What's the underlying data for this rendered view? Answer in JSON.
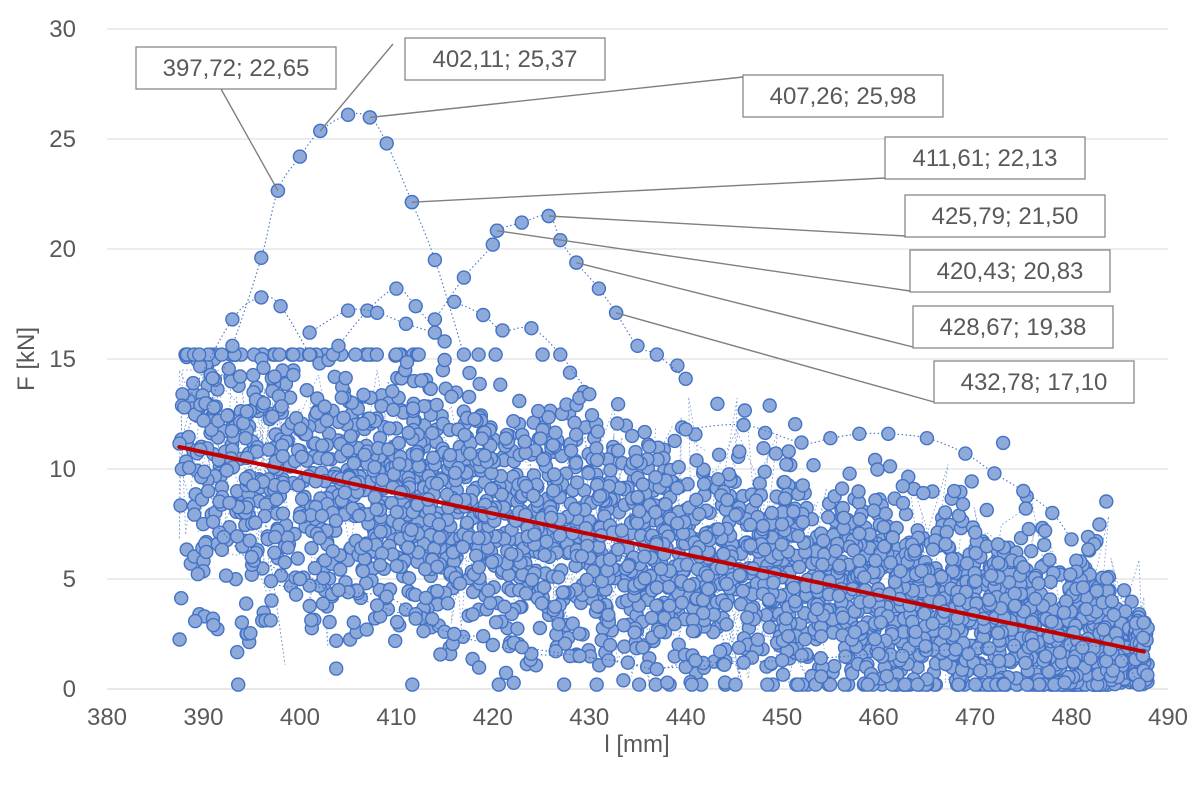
{
  "chart_data": {
    "type": "scatter",
    "xlabel": "l [mm]",
    "ylabel": "F [kN]",
    "xlim": [
      380,
      490
    ],
    "ylim": [
      0,
      30
    ],
    "xticks": [
      "380",
      "390",
      "400",
      "410",
      "420",
      "430",
      "440",
      "450",
      "460",
      "470",
      "480",
      "490"
    ],
    "yticks": [
      "0",
      "5",
      "10",
      "15",
      "20",
      "25",
      "30"
    ],
    "grid": "horizontal",
    "legend": "none",
    "colors": {
      "marker_fill": "#8eaadb",
      "marker_stroke": "#4472c4",
      "connector": "#4472c4",
      "trendline": "#c00000"
    },
    "series": [
      {
        "style": "markers-with-dotted-lines",
        "approximate_points": "dense cloud of several thousand points between l≈387 and l≈488, F≈0.2 to ≈14",
        "peak_points": [
          {
            "x": 397.72,
            "y": 22.65
          },
          {
            "x": 402.11,
            "y": 25.37
          },
          {
            "x": 407.26,
            "y": 25.98
          },
          {
            "x": 411.61,
            "y": 22.13
          },
          {
            "x": 420.43,
            "y": 20.83
          },
          {
            "x": 425.79,
            "y": 21.5
          },
          {
            "x": 428.67,
            "y": 19.38
          },
          {
            "x": 432.78,
            "y": 17.1
          }
        ],
        "upper_loops": [
          [
            [
              390,
              12.2
            ],
            [
              393,
              15.6
            ],
            [
              396,
              19.6
            ],
            [
              397.72,
              22.65
            ],
            [
              400,
              24.2
            ],
            [
              402.11,
              25.37
            ],
            [
              405,
              26.1
            ],
            [
              407.26,
              25.98
            ],
            [
              409,
              24.8
            ],
            [
              411.61,
              22.13
            ],
            [
              414,
              19.5
            ],
            [
              417,
              15.2
            ]
          ],
          [
            [
              388,
              12.8
            ],
            [
              393,
              16.8
            ],
            [
              396,
              17.8
            ],
            [
              398,
              17.4
            ],
            [
              401,
              15.2
            ]
          ],
          [
            [
              404,
              15.6
            ],
            [
              407,
              17.2
            ],
            [
              410,
              18.2
            ],
            [
              412,
              17.4
            ],
            [
              415,
              15.8
            ]
          ],
          [
            [
              414,
              16.8
            ],
            [
              417,
              18.7
            ],
            [
              420,
              20.2
            ],
            [
              420.43,
              20.83
            ],
            [
              423,
              21.2
            ],
            [
              425.79,
              21.5
            ],
            [
              427,
              20.4
            ],
            [
              428.67,
              19.38
            ],
            [
              431,
              18.2
            ],
            [
              432.78,
              17.1
            ],
            [
              435,
              15.6
            ],
            [
              437,
              15.2
            ],
            [
              440,
              14.1
            ]
          ],
          [
            [
              401,
              16.2
            ],
            [
              405,
              17.2
            ],
            [
              408,
              17.1
            ],
            [
              411,
              16.6
            ],
            [
              414,
              16.2
            ]
          ],
          [
            [
              416,
              17.6
            ],
            [
              419,
              17.0
            ],
            [
              421,
              16.3
            ],
            [
              424,
              16.4
            ],
            [
              427,
              15.2
            ],
            [
              430,
              13.4
            ]
          ],
          [
            [
              440,
              11.8
            ],
            [
              446,
              12.0
            ],
            [
              452,
              11.2
            ],
            [
              455,
              11.4
            ],
            [
              458,
              11.6
            ],
            [
              461,
              11.6
            ],
            [
              465,
              11.4
            ],
            [
              469,
              10.7
            ],
            [
              472,
              9.8
            ],
            [
              475,
              9.0
            ],
            [
              478,
              8.0
            ],
            [
              480,
              6.8
            ]
          ]
        ],
        "lower_loops": [
          [
            [
              391,
              7.6
            ],
            [
              397,
              4.9
            ],
            [
              401,
              4.7
            ],
            [
              405,
              4.4
            ],
            [
              409,
              4.2
            ],
            [
              412,
              3.4
            ],
            [
              415,
              2.6
            ],
            [
              420,
              2.0
            ],
            [
              424,
              1.6
            ],
            [
              428,
              1.5
            ],
            [
              432,
              1.3
            ],
            [
              436,
              1.0
            ],
            [
              440,
              1.0
            ],
            [
              446,
              1.2
            ],
            [
              450,
              1.3
            ],
            [
              454,
              1.4
            ],
            [
              460,
              1.6
            ],
            [
              468,
              1.8
            ],
            [
              476,
              2.0
            ],
            [
              484,
              1.8
            ],
            [
              487,
              0.2
            ]
          ],
          [
            [
              395,
              6.0
            ],
            [
              400,
              5.0
            ],
            [
              404,
              4.5
            ],
            [
              408,
              3.8
            ],
            [
              412,
              3.2
            ],
            [
              416,
              2.5
            ],
            [
              419,
              2.4
            ]
          ],
          [
            [
              423,
              1.9
            ],
            [
              429,
              1.5
            ],
            [
              434,
              1.2
            ],
            [
              437,
              0.9
            ],
            [
              441,
              1.3
            ],
            [
              444,
              1.1
            ]
          ]
        ]
      }
    ],
    "trendline": {
      "type": "linear",
      "points": [
        {
          "x": 387.5,
          "y": 11.0
        },
        {
          "x": 487.5,
          "y": 1.7
        }
      ]
    },
    "annotations": [
      {
        "text": "397,72; 22,65",
        "x": 397.72,
        "y": 22.65
      },
      {
        "text": "402,11; 25,37",
        "x": 402.11,
        "y": 25.37
      },
      {
        "text": "407,26; 25,98",
        "x": 407.26,
        "y": 25.98
      },
      {
        "text": "411,61; 22,13",
        "x": 411.61,
        "y": 22.13
      },
      {
        "text": "425,79; 21,50",
        "x": 425.79,
        "y": 21.5
      },
      {
        "text": "420,43; 20,83",
        "x": 420.43,
        "y": 20.83
      },
      {
        "text": "428,67; 19,38",
        "x": 428.67,
        "y": 19.38
      },
      {
        "text": "432,78; 17,10",
        "x": 432.78,
        "y": 17.1
      }
    ]
  }
}
